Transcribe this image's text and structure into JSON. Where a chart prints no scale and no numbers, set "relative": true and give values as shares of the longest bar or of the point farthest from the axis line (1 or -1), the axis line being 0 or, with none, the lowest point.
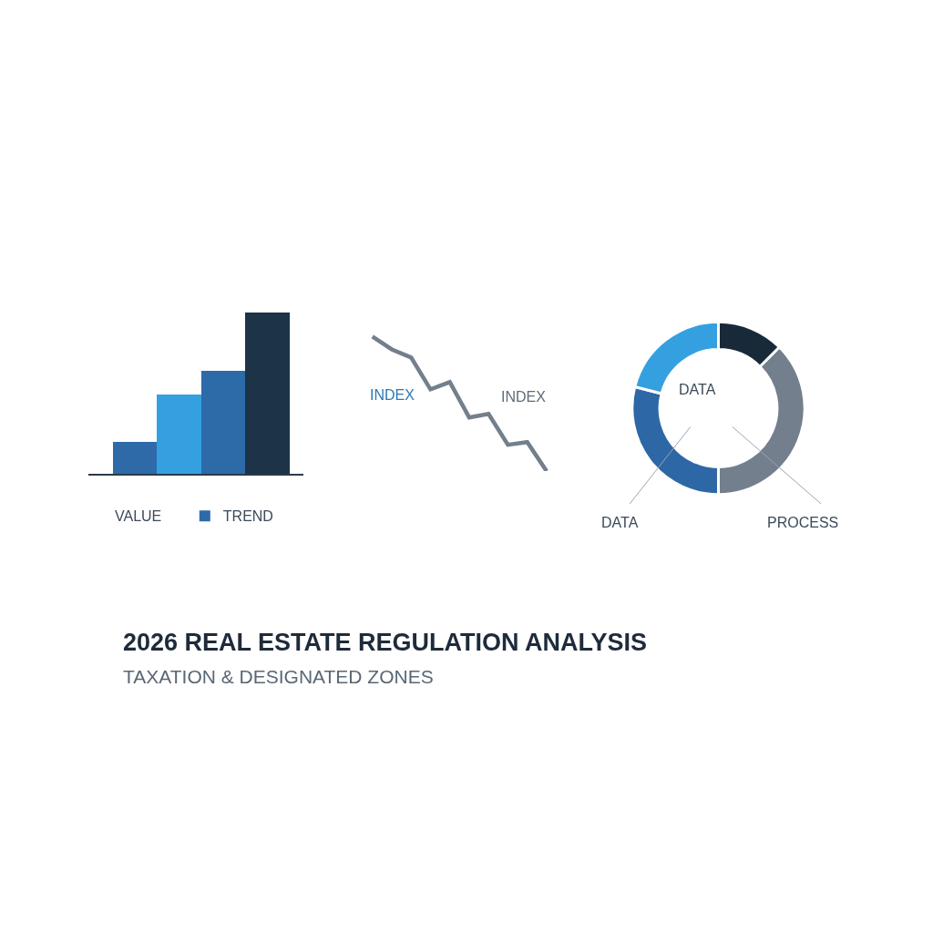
{
  "chart_data": [
    {
      "type": "bar",
      "relative": true,
      "categories": [
        null,
        null,
        null,
        null
      ],
      "xlabel": "VALUE",
      "legend": "bottom",
      "series": [
        {
          "name": "TREND",
          "color": "#2e6aa8",
          "colors": [
            "#2e6aa8",
            "#35a0e0",
            "#2c6aa8",
            "#1c3348"
          ],
          "values": [
            0.2,
            0.49,
            0.64,
            1
          ]
        }
      ]
    },
    {
      "type": "line",
      "relative": true,
      "categories": [
        null,
        null,
        null,
        null,
        null,
        null,
        null,
        null,
        null,
        null
      ],
      "series": [
        {
          "color": "#737f8c",
          "values": [
            1,
            0.905,
            0.845,
            0.608,
            0.662,
            0.399,
            0.426,
            0.196,
            0.216,
            0
          ]
        }
      ],
      "annotations": [
        "INDEX",
        "INDEX"
      ]
    },
    {
      "type": "donut",
      "categories": [
        null,
        null,
        null,
        null
      ],
      "values": [
        12.5,
        37.5,
        29,
        21
      ],
      "colors": [
        "#18293a",
        "#737f8c",
        "#2e67a5",
        "#35a0e0"
      ],
      "annotations": [
        "DATA",
        "DATA",
        "PROCESS"
      ]
    },
    {
      "type": "other",
      "title": "2026 REAL ESTATE REGULATION ANALYSIS",
      "subtitle": "TAXATION & DESIGNATED ZONES"
    }
  ]
}
